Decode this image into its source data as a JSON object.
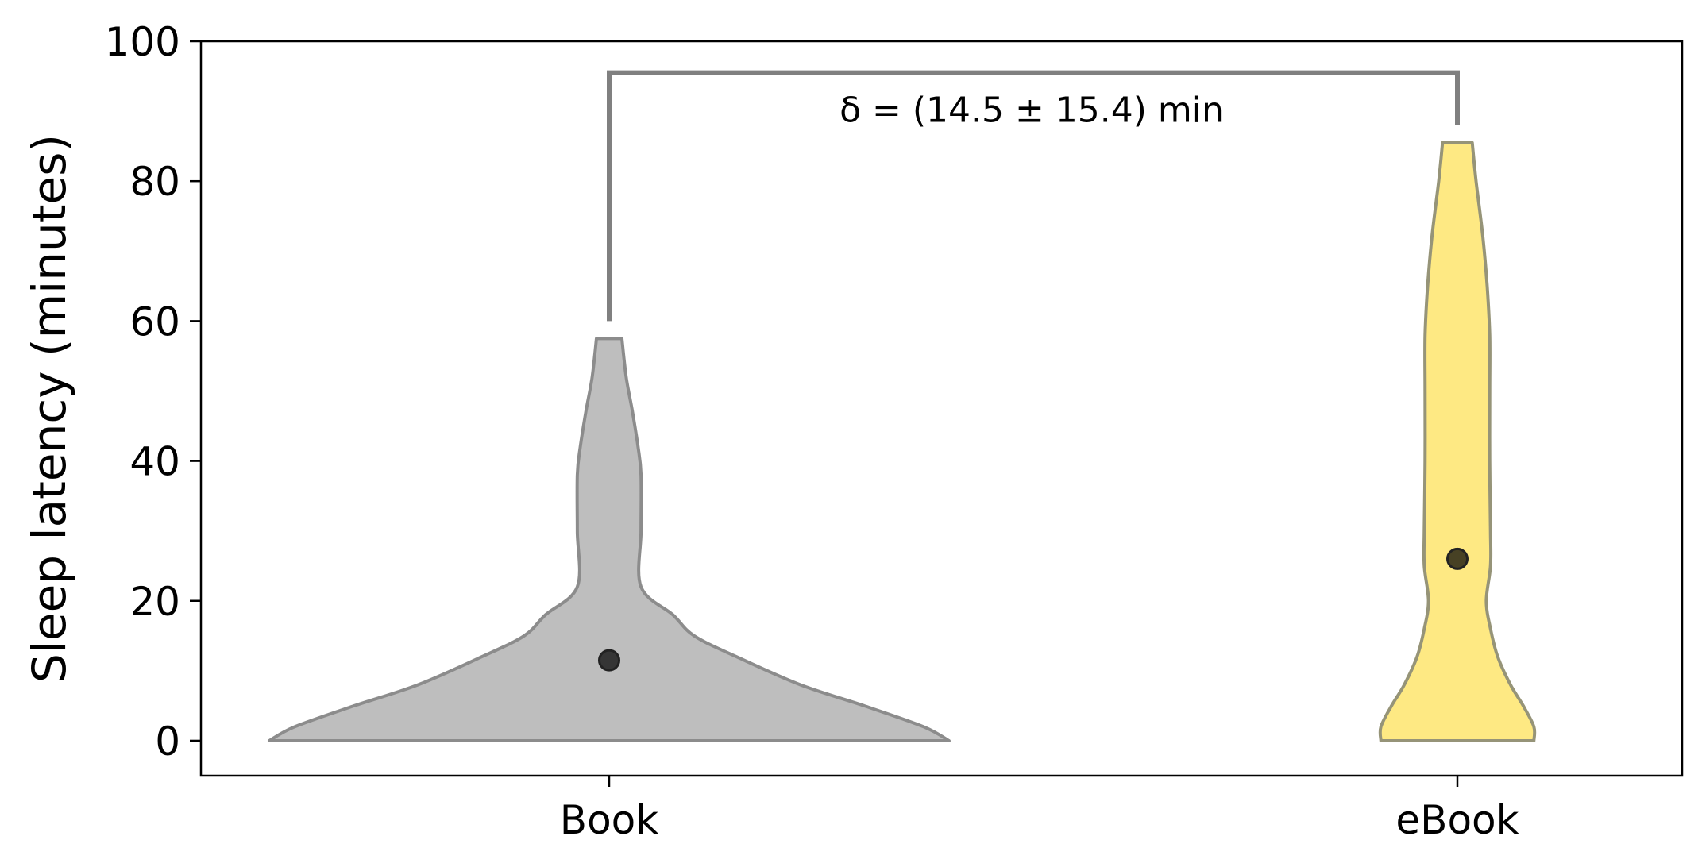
{
  "chart_data": {
    "type": "violin",
    "title": "",
    "xlabel": "",
    "ylabel": "Sleep latency (minutes)",
    "ylim": [
      -5,
      100
    ],
    "yticks": [
      0,
      20,
      40,
      60,
      80,
      100
    ],
    "grid": false,
    "categories": [
      "Book",
      "eBook"
    ],
    "series": [
      {
        "category": "Book",
        "color": "#bebebe",
        "edge_color": "#8c8c8c",
        "mean": 11.5,
        "min": 0,
        "max": 57.5,
        "density_profile": [
          [
            0,
            0.8
          ],
          [
            2,
            0.74
          ],
          [
            5,
            0.6
          ],
          [
            8,
            0.45
          ],
          [
            12,
            0.3
          ],
          [
            15,
            0.2
          ],
          [
            18,
            0.15
          ],
          [
            22,
            0.075
          ],
          [
            30,
            0.075
          ],
          [
            38,
            0.075
          ],
          [
            42,
            0.068
          ],
          [
            47,
            0.055
          ],
          [
            52,
            0.04
          ],
          [
            57.5,
            0.03
          ]
        ]
      },
      {
        "category": "eBook",
        "color": "#fee983",
        "edge_color": "#969478",
        "mean": 26,
        "min": 0,
        "max": 85.5,
        "density_profile": [
          [
            0,
            0.18
          ],
          [
            2,
            0.18
          ],
          [
            5,
            0.155
          ],
          [
            8,
            0.125
          ],
          [
            12,
            0.095
          ],
          [
            16,
            0.078
          ],
          [
            20,
            0.068
          ],
          [
            25,
            0.078
          ],
          [
            30,
            0.078
          ],
          [
            40,
            0.076
          ],
          [
            50,
            0.076
          ],
          [
            58,
            0.076
          ],
          [
            65,
            0.07
          ],
          [
            72,
            0.06
          ],
          [
            80,
            0.044
          ],
          [
            85.5,
            0.035
          ]
        ]
      }
    ],
    "annotations": [
      {
        "text": "δ = (14.5 ± 15.4) min",
        "from": "Book",
        "to": "eBook",
        "bracket_y": 95.5,
        "left_end_y": 60,
        "right_end_y": 88,
        "color": "#808080"
      }
    ]
  }
}
